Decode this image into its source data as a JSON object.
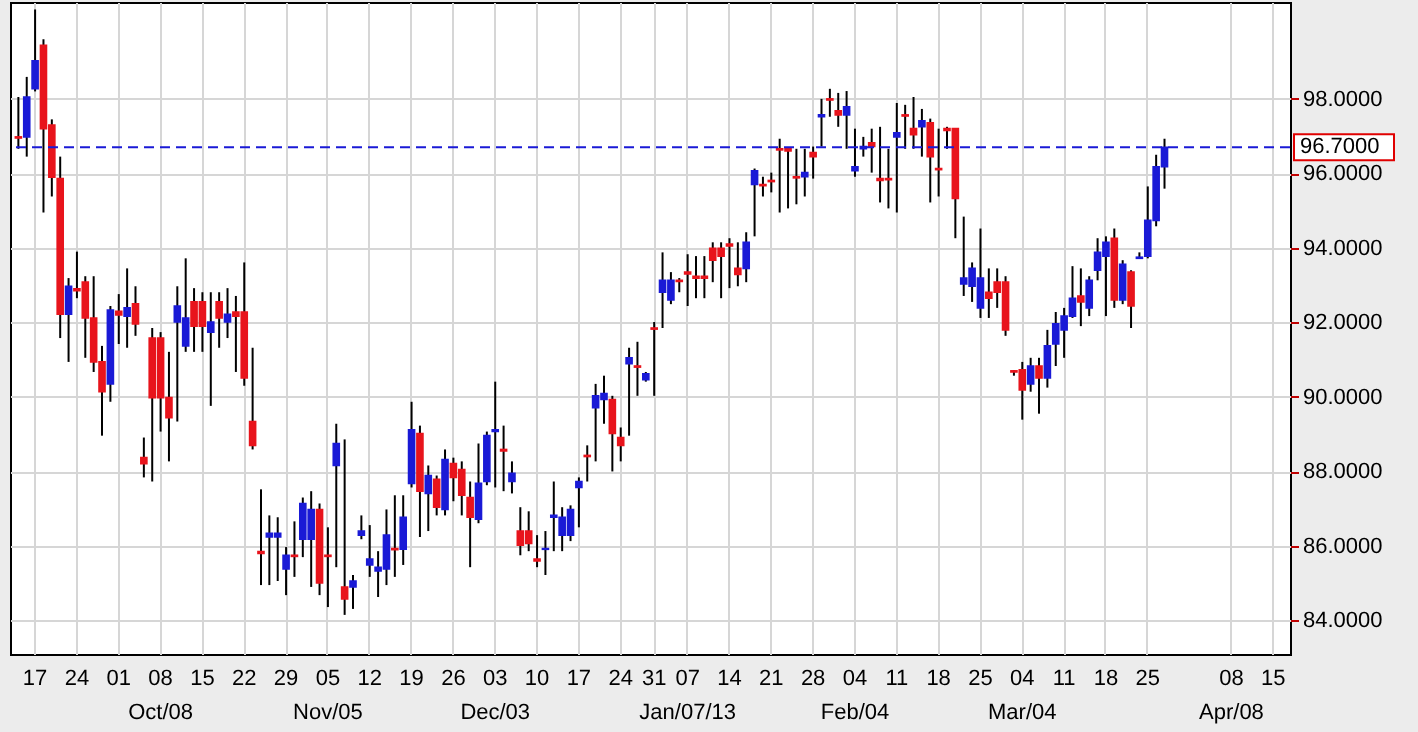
{
  "chart_data": {
    "type": "candlestick",
    "categories": [
      null,
      null,
      "17",
      null,
      null,
      null,
      null,
      "24",
      null,
      null,
      null,
      null,
      "01",
      null,
      null,
      null,
      null,
      "08\nOct/08",
      null,
      null,
      null,
      null,
      "15",
      null,
      null,
      null,
      null,
      "22",
      null,
      null,
      null,
      null,
      "29",
      null,
      null,
      null,
      null,
      "05\nNov/05",
      null,
      null,
      null,
      null,
      "12",
      null,
      null,
      null,
      null,
      "19",
      null,
      null,
      null,
      null,
      "26",
      null,
      null,
      null,
      null,
      "03\nDec/03",
      null,
      null,
      null,
      null,
      "10",
      null,
      null,
      null,
      null,
      "17",
      null,
      null,
      null,
      null,
      "24",
      null,
      null,
      null,
      "31",
      null,
      null,
      null,
      "07\nJan/07/13",
      null,
      null,
      null,
      null,
      "14",
      null,
      null,
      null,
      null,
      "21",
      null,
      null,
      null,
      null,
      "28",
      null,
      null,
      null,
      null,
      "04\nFeb/04",
      null,
      null,
      null,
      null,
      "11",
      null,
      null,
      null,
      null,
      "18",
      null,
      null,
      null,
      null,
      "25",
      null,
      null,
      null,
      null,
      "04\nMar/04",
      null,
      null,
      null,
      null,
      "11",
      null,
      null,
      null,
      null,
      "18",
      null,
      null,
      null,
      null,
      "25",
      null,
      null,
      null,
      null,
      null,
      null,
      null,
      null,
      null,
      "08\nApr/08",
      null,
      null,
      null,
      null,
      "15",
      null
    ],
    "ohlc": [
      [
        96.98,
        98.05,
        96.66,
        96.95
      ],
      [
        96.98,
        98.59,
        96.45,
        98.05
      ],
      [
        98.27,
        100.4,
        98.2,
        99.02
      ],
      [
        99.44,
        99.6,
        94.95,
        97.2
      ],
      [
        97.3,
        97.45,
        95.38,
        95.9
      ],
      [
        95.86,
        96.45,
        91.58,
        92.22
      ],
      [
        92.22,
        93.19,
        90.94,
        92.97
      ],
      [
        92.9,
        93.9,
        92.65,
        92.85
      ],
      [
        93.08,
        93.24,
        91.05,
        92.12
      ],
      [
        92.12,
        93.24,
        90.67,
        90.94
      ],
      [
        90.94,
        91.37,
        88.96,
        90.14
      ],
      [
        90.35,
        92.44,
        89.87,
        92.33
      ],
      [
        92.3,
        92.76,
        91.42,
        92.2
      ],
      [
        92.17,
        93.45,
        91.32,
        92.39
      ],
      [
        92.5,
        92.97,
        91.64,
        91.96
      ],
      [
        88.37,
        88.91,
        87.84,
        88.21
      ],
      [
        91.58,
        91.85,
        87.73,
        89.98
      ],
      [
        91.58,
        91.74,
        89.07,
        89.98
      ],
      [
        89.98,
        91.21,
        88.27,
        89.44
      ],
      [
        92.01,
        92.97,
        89.34,
        92.44
      ],
      [
        91.37,
        93.72,
        91.21,
        92.12
      ],
      [
        92.55,
        92.92,
        91.21,
        91.9
      ],
      [
        92.55,
        92.81,
        91.21,
        91.9
      ],
      [
        91.74,
        92.81,
        89.76,
        92.01
      ],
      [
        92.55,
        92.81,
        91.32,
        92.12
      ],
      [
        92.01,
        92.92,
        91.58,
        92.22
      ],
      [
        92.28,
        92.71,
        90.67,
        92.17
      ],
      [
        92.28,
        93.61,
        90.3,
        90.51
      ],
      [
        89.34,
        91.32,
        88.59,
        88.7
      ],
      [
        85.85,
        87.52,
        84.95,
        85.8
      ],
      [
        86.24,
        86.82,
        84.95,
        86.34
      ],
      [
        86.24,
        86.77,
        85.06,
        86.34
      ],
      [
        85.38,
        85.97,
        84.68,
        85.75
      ],
      [
        85.75,
        86.66,
        85.17,
        85.72
      ],
      [
        86.18,
        87.3,
        85.7,
        87.14
      ],
      [
        86.18,
        87.47,
        84.9,
        86.98
      ],
      [
        86.98,
        87.14,
        84.68,
        85.01
      ],
      [
        85.75,
        86.5,
        84.36,
        85.72
      ],
      [
        88.16,
        89.28,
        85.43,
        88.75
      ],
      [
        84.9,
        88.86,
        84.15,
        84.58
      ],
      [
        84.9,
        85.22,
        84.31,
        85.06
      ],
      [
        86.29,
        86.82,
        86.18,
        86.4
      ],
      [
        85.49,
        86.56,
        85.17,
        85.65
      ],
      [
        85.33,
        85.86,
        84.63,
        85.43
      ],
      [
        85.38,
        86.98,
        84.95,
        86.29
      ],
      [
        85.93,
        87.36,
        85.17,
        85.9
      ],
      [
        85.91,
        87.36,
        85.49,
        86.77
      ],
      [
        87.68,
        89.87,
        87.57,
        89.12
      ],
      [
        89.02,
        89.23,
        86.24,
        87.47
      ],
      [
        87.41,
        88.16,
        86.4,
        87.89
      ],
      [
        87.79,
        87.89,
        86.82,
        87.04
      ],
      [
        86.98,
        88.59,
        86.82,
        88.32
      ],
      [
        88.21,
        88.37,
        87.2,
        87.84
      ],
      [
        88.05,
        88.27,
        86.82,
        87.36
      ],
      [
        87.3,
        87.73,
        85.43,
        86.77
      ],
      [
        86.72,
        88.75,
        86.61,
        87.68
      ],
      [
        87.73,
        89.07,
        87.63,
        88.96
      ],
      [
        89.07,
        90.41,
        87.57,
        89.12
      ],
      [
        88.59,
        89.23,
        87.47,
        88.55
      ],
      [
        87.73,
        88.27,
        87.41,
        87.95
      ],
      [
        86.4,
        87.04,
        85.75,
        86.02
      ],
      [
        86.4,
        86.93,
        85.86,
        86.07
      ],
      [
        85.65,
        86.29,
        85.43,
        85.6
      ],
      [
        85.91,
        86.4,
        85.22,
        85.93
      ],
      [
        86.77,
        87.73,
        85.86,
        86.82
      ],
      [
        86.29,
        87.04,
        85.86,
        86.77
      ],
      [
        86.29,
        87.09,
        86.13,
        86.98
      ],
      [
        87.57,
        87.84,
        86.5,
        87.73
      ],
      [
        88.43,
        88.7,
        87.73,
        88.4
      ],
      [
        89.71,
        90.35,
        88.27,
        90.03
      ],
      [
        89.93,
        90.57,
        89.28,
        90.09
      ],
      [
        89.93,
        90.03,
        88.0,
        89.02
      ],
      [
        88.91,
        89.18,
        88.27,
        88.7
      ],
      [
        90.89,
        91.32,
        88.96,
        91.05
      ],
      [
        90.83,
        91.48,
        90.03,
        90.8
      ],
      [
        90.46,
        90.67,
        90.41,
        90.62
      ],
      [
        91.85,
        92.01,
        90.03,
        91.82
      ],
      [
        92.81,
        93.88,
        91.85,
        93.13
      ],
      [
        92.6,
        93.35,
        92.49,
        93.13
      ],
      [
        93.13,
        93.19,
        92.81,
        93.1
      ],
      [
        93.35,
        93.83,
        92.44,
        93.3
      ],
      [
        93.24,
        93.78,
        92.65,
        93.19
      ],
      [
        93.24,
        93.78,
        92.65,
        93.19
      ],
      [
        93.99,
        94.15,
        93.08,
        93.67
      ],
      [
        93.99,
        94.15,
        92.65,
        93.78
      ],
      [
        94.1,
        94.26,
        92.92,
        94.05
      ],
      [
        93.45,
        94.15,
        92.97,
        93.29
      ],
      [
        93.45,
        94.42,
        93.08,
        94.15
      ],
      [
        95.7,
        96.13,
        94.31,
        96.07
      ],
      [
        95.7,
        95.91,
        95.38,
        95.67
      ],
      [
        95.81,
        96.02,
        95.49,
        95.78
      ],
      [
        96.66,
        96.93,
        94.95,
        96.63
      ],
      [
        96.66,
        96.66,
        95.06,
        96.6
      ],
      [
        95.91,
        96.66,
        95.17,
        95.88
      ],
      [
        95.91,
        96.66,
        95.38,
        96.02
      ],
      [
        96.56,
        96.72,
        95.86,
        96.45
      ],
      [
        97.52,
        98.0,
        96.72,
        97.57
      ],
      [
        98.0,
        98.27,
        97.52,
        97.97
      ],
      [
        97.68,
        98.16,
        97.25,
        97.57
      ],
      [
        97.57,
        98.21,
        96.66,
        97.79
      ],
      [
        96.07,
        97.2,
        95.91,
        96.18
      ],
      [
        96.66,
        96.98,
        96.45,
        96.72
      ],
      [
        96.82,
        97.2,
        96.02,
        96.72
      ],
      [
        95.86,
        97.25,
        95.22,
        95.81
      ],
      [
        95.86,
        96.66,
        95.06,
        95.83
      ],
      [
        96.98,
        97.89,
        94.95,
        97.09
      ],
      [
        97.57,
        97.84,
        96.66,
        97.54
      ],
      [
        97.2,
        98.05,
        96.66,
        97.04
      ],
      [
        97.25,
        97.73,
        96.45,
        97.41
      ],
      [
        97.36,
        97.47,
        95.22,
        96.45
      ],
      [
        96.13,
        97.2,
        95.38,
        96.1
      ],
      [
        97.2,
        97.25,
        96.66,
        97.15
      ],
      [
        97.2,
        97.2,
        94.26,
        95.33
      ],
      [
        93.03,
        94.84,
        92.71,
        93.19
      ],
      [
        92.97,
        93.61,
        92.55,
        93.45
      ],
      [
        92.39,
        94.52,
        92.12,
        93.19
      ],
      [
        92.81,
        93.45,
        92.12,
        92.65
      ],
      [
        93.08,
        93.45,
        92.39,
        92.81
      ],
      [
        93.08,
        93.24,
        91.64,
        91.8
      ],
      [
        90.7,
        90.72,
        90.57,
        90.67
      ],
      [
        90.73,
        90.94,
        89.39,
        90.19
      ],
      [
        90.35,
        91.05,
        90.14,
        90.83
      ],
      [
        90.83,
        91.05,
        89.55,
        90.51
      ],
      [
        90.51,
        91.8,
        90.25,
        91.37
      ],
      [
        91.42,
        92.28,
        90.83,
        91.96
      ],
      [
        91.8,
        92.39,
        91.05,
        92.17
      ],
      [
        92.17,
        93.51,
        92.12,
        92.65
      ],
      [
        92.71,
        93.45,
        91.9,
        92.55
      ],
      [
        92.39,
        93.24,
        92.17,
        93.13
      ],
      [
        93.4,
        94.26,
        93.13,
        93.88
      ],
      [
        93.78,
        94.31,
        92.17,
        94.15
      ],
      [
        94.26,
        94.52,
        92.39,
        92.6
      ],
      [
        92.6,
        93.67,
        92.49,
        93.56
      ],
      [
        93.35,
        93.4,
        91.85,
        92.44
      ],
      [
        93.72,
        93.88,
        93.72,
        93.75
      ],
      [
        93.78,
        95.65,
        93.72,
        94.74
      ],
      [
        94.74,
        96.5,
        94.58,
        96.18
      ],
      [
        96.18,
        96.93,
        95.59,
        96.7
      ],
      null,
      null,
      null,
      null,
      null,
      null,
      null,
      null,
      null,
      null,
      null,
      null,
      null,
      null
    ],
    "colors": [
      "#e8141c",
      "#1a1ad6",
      "#1a1ad6",
      "#e8141c",
      "#e8141c",
      "#e8141c",
      "#1a1ad6",
      "#e8141c",
      "#e8141c",
      "#e8141c",
      "#e8141c",
      "#1a1ad6",
      "#e8141c",
      "#1a1ad6",
      "#e8141c",
      "#e8141c",
      "#e8141c",
      "#e8141c",
      "#e8141c",
      "#1a1ad6",
      "#1a1ad6",
      "#e8141c",
      "#e8141c",
      "#1a1ad6",
      "#e8141c",
      "#1a1ad6",
      "#e8141c",
      "#e8141c",
      "#e8141c",
      "#e8141c",
      "#1a1ad6",
      "#1a1ad6",
      "#1a1ad6",
      "#e8141c",
      "#1a1ad6",
      "#1a1ad6",
      "#e8141c",
      "#e8141c",
      "#1a1ad6",
      "#e8141c",
      "#1a1ad6",
      "#1a1ad6",
      "#1a1ad6",
      "#1a1ad6",
      "#1a1ad6",
      "#e8141c",
      "#1a1ad6",
      "#1a1ad6",
      "#e8141c",
      "#1a1ad6",
      "#e8141c",
      "#1a1ad6",
      "#e8141c",
      "#e8141c",
      "#e8141c",
      "#1a1ad6",
      "#1a1ad6",
      "#1a1ad6",
      "#e8141c",
      "#1a1ad6",
      "#e8141c",
      "#e8141c",
      "#e8141c",
      "#1a1ad6",
      "#1a1ad6",
      "#1a1ad6",
      "#1a1ad6",
      "#1a1ad6",
      "#e8141c",
      "#1a1ad6",
      "#1a1ad6",
      "#e8141c",
      "#e8141c",
      "#1a1ad6",
      "#e8141c",
      "#1a1ad6",
      "#e8141c",
      "#1a1ad6",
      "#1a1ad6",
      "#e8141c",
      "#e8141c",
      "#e8141c",
      "#e8141c",
      "#e8141c",
      "#e8141c",
      "#e8141c",
      "#e8141c",
      "#1a1ad6",
      "#1a1ad6",
      "#e8141c",
      "#e8141c",
      "#e8141c",
      "#e8141c",
      "#e8141c",
      "#1a1ad6",
      "#e8141c",
      "#1a1ad6",
      "#e8141c",
      "#e8141c",
      "#1a1ad6",
      "#1a1ad6",
      "#1a1ad6",
      "#e8141c",
      "#e8141c",
      "#e8141c",
      "#1a1ad6",
      "#e8141c",
      "#e8141c",
      "#1a1ad6",
      "#e8141c",
      "#e8141c",
      "#e8141c",
      "#e8141c",
      "#1a1ad6",
      "#1a1ad6",
      "#1a1ad6",
      "#e8141c",
      "#e8141c",
      "#e8141c",
      "#e8141c",
      "#e8141c",
      "#1a1ad6",
      "#e8141c",
      "#1a1ad6",
      "#1a1ad6",
      "#1a1ad6",
      "#1a1ad6",
      "#e8141c",
      "#1a1ad6",
      "#1a1ad6",
      "#1a1ad6",
      "#e8141c",
      "#1a1ad6",
      "#e8141c",
      "#1a1ad6",
      "#1a1ad6",
      "#1a1ad6",
      "#1a1ad6",
      null,
      null,
      null,
      null,
      null,
      null,
      null,
      null,
      null,
      null,
      null,
      null,
      null,
      null
    ],
    "ylim": [
      83.1,
      100.6
    ],
    "yticks": [
      {
        "value": 84,
        "label": "84.0000"
      },
      {
        "value": 86,
        "label": "86.0000"
      },
      {
        "value": 88,
        "label": "88.0000"
      },
      {
        "value": 90,
        "label": "90.0000"
      },
      {
        "value": 92,
        "label": "92.0000"
      },
      {
        "value": 94,
        "label": "94.0000"
      },
      {
        "value": 96,
        "label": "96.0000"
      },
      {
        "value": 98,
        "label": "98.0000"
      }
    ],
    "grid": true,
    "ref_lines": [
      {
        "axis": "y",
        "value": 96.7,
        "label": "96.7000",
        "color": "#1a1ad6",
        "line_style": "dashed"
      }
    ]
  }
}
